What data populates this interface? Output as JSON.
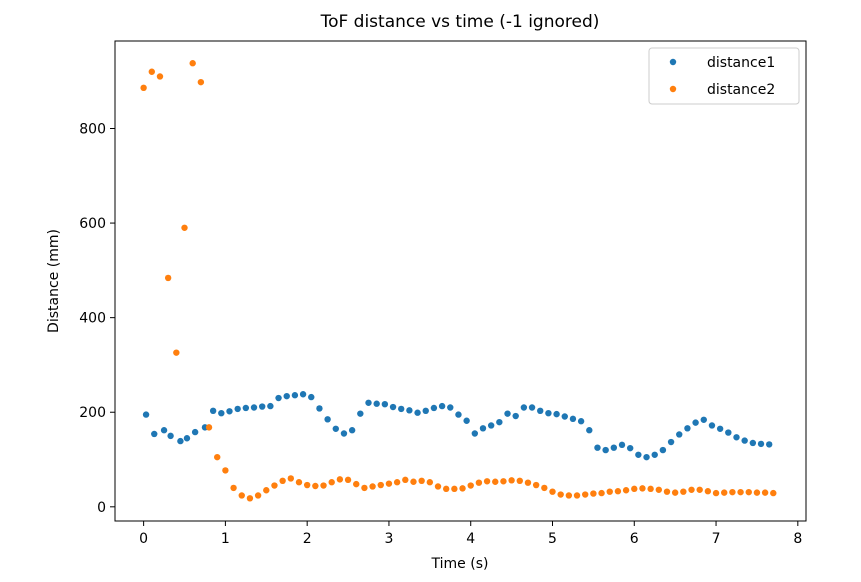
{
  "chart_data": {
    "type": "scatter",
    "title": "ToF distance vs time (-1 ignored)",
    "xlabel": "Time (s)",
    "ylabel": "Distance (mm)",
    "xlim": [
      -0.35,
      8.1
    ],
    "ylim": [
      -30,
      985
    ],
    "xticks": [
      0,
      1,
      2,
      3,
      4,
      5,
      6,
      7,
      8
    ],
    "yticks": [
      0,
      200,
      400,
      600,
      800
    ],
    "legend_position": "top-right",
    "series": [
      {
        "name": "distance1",
        "color": "#1f77b4",
        "points": [
          [
            0.03,
            195
          ],
          [
            0.13,
            154
          ],
          [
            0.25,
            162
          ],
          [
            0.33,
            150
          ],
          [
            0.45,
            139
          ],
          [
            0.53,
            145
          ],
          [
            0.63,
            158
          ],
          [
            0.75,
            168
          ],
          [
            0.85,
            203
          ],
          [
            0.95,
            198
          ],
          [
            1.05,
            202
          ],
          [
            1.15,
            207
          ],
          [
            1.25,
            209
          ],
          [
            1.35,
            210
          ],
          [
            1.45,
            212
          ],
          [
            1.55,
            213
          ],
          [
            1.65,
            230
          ],
          [
            1.75,
            234
          ],
          [
            1.85,
            236
          ],
          [
            1.95,
            238
          ],
          [
            2.05,
            232
          ],
          [
            2.15,
            208
          ],
          [
            2.25,
            185
          ],
          [
            2.35,
            165
          ],
          [
            2.45,
            155
          ],
          [
            2.55,
            162
          ],
          [
            2.65,
            197
          ],
          [
            2.75,
            220
          ],
          [
            2.85,
            218
          ],
          [
            2.95,
            217
          ],
          [
            3.05,
            211
          ],
          [
            3.15,
            207
          ],
          [
            3.25,
            204
          ],
          [
            3.35,
            199
          ],
          [
            3.45,
            203
          ],
          [
            3.55,
            209
          ],
          [
            3.65,
            213
          ],
          [
            3.75,
            210
          ],
          [
            3.85,
            195
          ],
          [
            3.95,
            182
          ],
          [
            4.05,
            155
          ],
          [
            4.15,
            166
          ],
          [
            4.25,
            172
          ],
          [
            4.35,
            179
          ],
          [
            4.45,
            197
          ],
          [
            4.55,
            192
          ],
          [
            4.65,
            210
          ],
          [
            4.75,
            210
          ],
          [
            4.85,
            203
          ],
          [
            4.95,
            198
          ],
          [
            5.05,
            196
          ],
          [
            5.15,
            191
          ],
          [
            5.25,
            186
          ],
          [
            5.35,
            181
          ],
          [
            5.45,
            162
          ],
          [
            5.55,
            125
          ],
          [
            5.65,
            120
          ],
          [
            5.75,
            125
          ],
          [
            5.85,
            131
          ],
          [
            5.95,
            124
          ],
          [
            6.05,
            110
          ],
          [
            6.15,
            105
          ],
          [
            6.25,
            110
          ],
          [
            6.35,
            120
          ],
          [
            6.45,
            137
          ],
          [
            6.55,
            153
          ],
          [
            6.65,
            166
          ],
          [
            6.75,
            178
          ],
          [
            6.85,
            184
          ],
          [
            6.95,
            172
          ],
          [
            7.05,
            165
          ],
          [
            7.15,
            157
          ],
          [
            7.25,
            147
          ],
          [
            7.35,
            140
          ],
          [
            7.45,
            135
          ],
          [
            7.55,
            133
          ],
          [
            7.65,
            132
          ]
        ]
      },
      {
        "name": "distance2",
        "color": "#ff7f0e",
        "points": [
          [
            0.0,
            886
          ],
          [
            0.1,
            920
          ],
          [
            0.2,
            910
          ],
          [
            0.3,
            484
          ],
          [
            0.4,
            326
          ],
          [
            0.5,
            590
          ],
          [
            0.6,
            938
          ],
          [
            0.7,
            898
          ],
          [
            0.8,
            168
          ],
          [
            0.9,
            105
          ],
          [
            1.0,
            77
          ],
          [
            1.1,
            40
          ],
          [
            1.2,
            24
          ],
          [
            1.3,
            18
          ],
          [
            1.4,
            24
          ],
          [
            1.5,
            35
          ],
          [
            1.6,
            45
          ],
          [
            1.7,
            55
          ],
          [
            1.8,
            60
          ],
          [
            1.9,
            52
          ],
          [
            2.0,
            46
          ],
          [
            2.1,
            44
          ],
          [
            2.2,
            45
          ],
          [
            2.3,
            52
          ],
          [
            2.4,
            58
          ],
          [
            2.5,
            57
          ],
          [
            2.6,
            48
          ],
          [
            2.7,
            40
          ],
          [
            2.8,
            43
          ],
          [
            2.9,
            46
          ],
          [
            3.0,
            49
          ],
          [
            3.1,
            52
          ],
          [
            3.2,
            57
          ],
          [
            3.3,
            53
          ],
          [
            3.4,
            55
          ],
          [
            3.5,
            52
          ],
          [
            3.6,
            43
          ],
          [
            3.7,
            38
          ],
          [
            3.8,
            38
          ],
          [
            3.9,
            39
          ],
          [
            4.0,
            45
          ],
          [
            4.1,
            51
          ],
          [
            4.2,
            54
          ],
          [
            4.3,
            53
          ],
          [
            4.4,
            54
          ],
          [
            4.5,
            56
          ],
          [
            4.6,
            55
          ],
          [
            4.7,
            51
          ],
          [
            4.8,
            46
          ],
          [
            4.9,
            40
          ],
          [
            5.0,
            32
          ],
          [
            5.1,
            26
          ],
          [
            5.2,
            24
          ],
          [
            5.3,
            24
          ],
          [
            5.4,
            26
          ],
          [
            5.5,
            28
          ],
          [
            5.6,
            29
          ],
          [
            5.7,
            32
          ],
          [
            5.8,
            33
          ],
          [
            5.9,
            35
          ],
          [
            6.0,
            38
          ],
          [
            6.1,
            39
          ],
          [
            6.2,
            38
          ],
          [
            6.3,
            36
          ],
          [
            6.4,
            32
          ],
          [
            6.5,
            30
          ],
          [
            6.6,
            32
          ],
          [
            6.7,
            36
          ],
          [
            6.8,
            36
          ],
          [
            6.9,
            33
          ],
          [
            7.0,
            29
          ],
          [
            7.1,
            30
          ],
          [
            7.2,
            31
          ],
          [
            7.3,
            31
          ],
          [
            7.4,
            31
          ],
          [
            7.5,
            30
          ],
          [
            7.6,
            30
          ],
          [
            7.7,
            29
          ]
        ]
      }
    ]
  }
}
